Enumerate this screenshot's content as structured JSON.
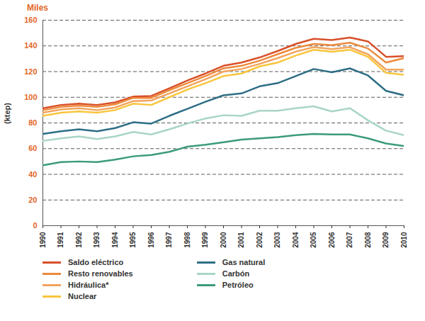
{
  "chart_data": {
    "type": "line",
    "annotations": [
      "Miles"
    ],
    "ylabel": "(ktep)",
    "stacked": true,
    "grid": true,
    "x": [
      1990,
      1991,
      1992,
      1993,
      1994,
      1995,
      1996,
      1997,
      1998,
      1999,
      2000,
      2001,
      2002,
      2003,
      2004,
      2005,
      2006,
      2007,
      2008,
      2009,
      2010
    ],
    "xlim": [
      1990,
      2010
    ],
    "xticks": [
      1990,
      1991,
      1992,
      1993,
      1994,
      1995,
      1996,
      1997,
      1998,
      1999,
      2000,
      2001,
      2002,
      2003,
      2004,
      2005,
      2006,
      2007,
      2008,
      2009,
      2010
    ],
    "ylim": [
      0,
      160
    ],
    "yticks": [
      0,
      20,
      40,
      60,
      80,
      100,
      120,
      140,
      160
    ],
    "series": [
      {
        "name": "Saldo eléctrico",
        "color": "#d9502a",
        "values": [
          1.5,
          1.5,
          1.5,
          1.5,
          1.5,
          1,
          1.5,
          1.5,
          2,
          2,
          2,
          2.5,
          2.5,
          2.5,
          3,
          4,
          4,
          4,
          5.5,
          4.5,
          1.5
        ]
      },
      {
        "name": "Resto renovables",
        "color": "#ec8a3c",
        "values": [
          2,
          2,
          2,
          2.5,
          2.5,
          2.5,
          2,
          2.5,
          2.5,
          2.5,
          2.5,
          2.5,
          2.5,
          3,
          3,
          2.5,
          3,
          3.5,
          4.5,
          5.5,
          9
        ]
      },
      {
        "name": "Hidráulica*",
        "color": "#f2a45c",
        "values": [
          2.5,
          2.5,
          2.5,
          2,
          2,
          2,
          3.5,
          3,
          2.5,
          3,
          3.5,
          3.5,
          2,
          3.5,
          3,
          2,
          2,
          2,
          2,
          2.5,
          4
        ]
      },
      {
        "name": "Nuclear",
        "color": "#f8c53c",
        "values": [
          14,
          14.5,
          14,
          14.5,
          14,
          14.5,
          14.5,
          14.5,
          15,
          14.5,
          15,
          15.5,
          15.5,
          16,
          16,
          15,
          16,
          14.5,
          14.5,
          14,
          16
        ]
      },
      {
        "name": "Gas natural",
        "color": "#2e6e86",
        "values": [
          5.5,
          5.5,
          5.5,
          6,
          6.5,
          7.5,
          8.5,
          10.5,
          11.5,
          13,
          15.5,
          17.5,
          19,
          21.5,
          25,
          29,
          30.5,
          31,
          35,
          31,
          31
        ]
      },
      {
        "name": "Carbón",
        "color": "#a9d6c3",
        "values": [
          19,
          18.5,
          19.5,
          18,
          18,
          19,
          16,
          17.5,
          18,
          20.5,
          21,
          18.5,
          21.5,
          20.5,
          21,
          21.5,
          18,
          20.5,
          14,
          10,
          8.5
        ]
      },
      {
        "name": "Petróleo",
        "color": "#3b9b7b",
        "values": [
          47,
          49.5,
          50,
          49.5,
          51.5,
          54,
          55,
          57.5,
          61.5,
          63,
          65,
          67,
          68,
          69,
          70.5,
          71.5,
          71,
          71,
          68,
          64,
          62
        ]
      }
    ]
  }
}
